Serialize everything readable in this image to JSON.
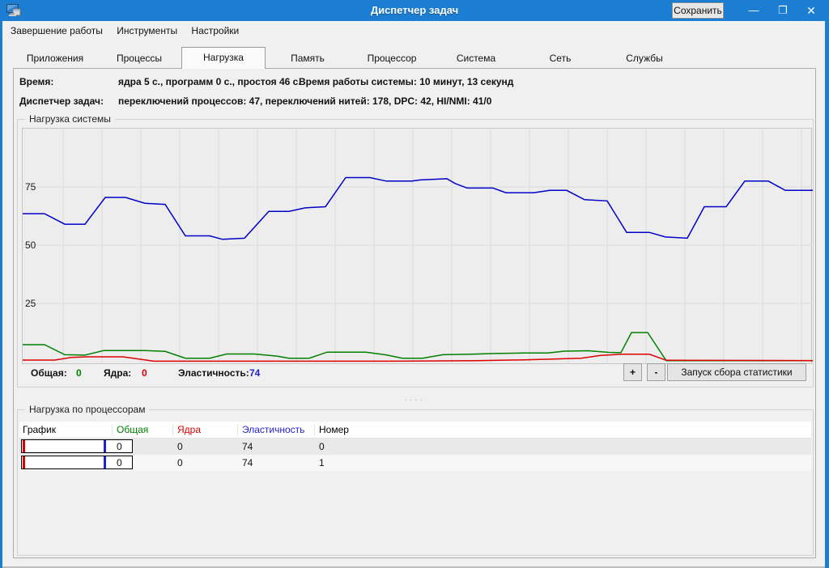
{
  "colors": {
    "titlebar": "#1b7ed3",
    "total_green": "#008000",
    "kernel_red": "#dd0000",
    "elastic_blue": "#2222cc"
  },
  "window": {
    "title": "Диспетчер задач",
    "save_button": "Сохранить",
    "minimize_icon": "—",
    "maximize_icon": "❐",
    "close_icon": "✕"
  },
  "menu": {
    "items": [
      "Завершение работы",
      "Инструменты",
      "Настройки"
    ]
  },
  "tabs": [
    {
      "label": "Приложения",
      "active": false
    },
    {
      "label": "Процессы",
      "active": false
    },
    {
      "label": "Нагрузка",
      "active": true
    },
    {
      "label": "Память",
      "active": false
    },
    {
      "label": "Процессор",
      "active": false
    },
    {
      "label": "Система",
      "active": false
    },
    {
      "label": "Сеть",
      "active": false
    },
    {
      "label": "Службы",
      "active": false
    }
  ],
  "info": {
    "time_label": "Время:",
    "time_value": "ядра 5 с., программ 0 с., простоя 46 с.",
    "uptime": "Время работы системы: 10 минут, 13 секунд",
    "taskmgr_label": "Диспетчер задач:",
    "taskmgr_value": "переключений процессов: 47, переключений нитей: 178, DPC: 42, HI/NMI: 41/0"
  },
  "load_panel": {
    "title": "Нагрузка системы",
    "legend": {
      "total_label": "Общая:",
      "total_value": "0",
      "kernel_label": "Ядра:",
      "kernel_value": "0",
      "elastic_label": "Эластичность:",
      "elastic_value": "74"
    },
    "plus_button": "+",
    "minus_button": "-",
    "stats_button": "Запуск сбора статистики"
  },
  "splitter": "····",
  "cpu_panel": {
    "title": "Нагрузка по процессорам",
    "columns": [
      {
        "label": "График",
        "color": "#000000"
      },
      {
        "label": "Общая",
        "color": "#008000"
      },
      {
        "label": "Ядра",
        "color": "#dd0000"
      },
      {
        "label": "Эластичность",
        "color": "#2222cc"
      },
      {
        "label": "Номер",
        "color": "#000000"
      }
    ],
    "rows": [
      {
        "total": "0",
        "kernel": "0",
        "elasticity": "74",
        "number": "0"
      },
      {
        "total": "0",
        "kernel": "0",
        "elasticity": "74",
        "number": "1"
      }
    ]
  },
  "chart_data": {
    "type": "line",
    "title": "Нагрузка системы",
    "ylim": [
      0,
      100
    ],
    "yticks": [
      25,
      50,
      75
    ],
    "grid": true,
    "legend_position": "bottom",
    "x_unit": "time-sweep",
    "series": [
      {
        "name": "Общая",
        "color": "#008000",
        "points": [
          [
            0,
            7.3
          ],
          [
            27,
            7.3
          ],
          [
            52,
            3
          ],
          [
            77,
            2.8
          ],
          [
            100,
            4.8
          ],
          [
            127,
            4.8
          ],
          [
            151,
            4.8
          ],
          [
            176,
            4.4
          ],
          [
            201,
            1.5
          ],
          [
            231,
            1.5
          ],
          [
            252,
            3.3
          ],
          [
            286,
            3.3
          ],
          [
            314,
            2.4
          ],
          [
            329,
            1.5
          ],
          [
            354,
            1.5
          ],
          [
            376,
            4.1
          ],
          [
            424,
            4.1
          ],
          [
            449,
            2.9
          ],
          [
            469,
            1.5
          ],
          [
            494,
            1.5
          ],
          [
            519,
            3
          ],
          [
            554,
            3.2
          ],
          [
            584,
            3.5
          ],
          [
            619,
            3.7
          ],
          [
            649,
            3.7
          ],
          [
            669,
            4.5
          ],
          [
            699,
            4.7
          ],
          [
            724,
            4
          ],
          [
            739,
            3.9
          ],
          [
            752,
            12.5
          ],
          [
            772,
            12.5
          ],
          [
            795,
            0.4
          ],
          [
            976,
            0.4
          ]
        ]
      },
      {
        "name": "Ядра",
        "color": "#dd0000",
        "points": [
          [
            0,
            0.7
          ],
          [
            40,
            0.7
          ],
          [
            60,
            1.8
          ],
          [
            79,
            2.1
          ],
          [
            124,
            2.1
          ],
          [
            140,
            1.3
          ],
          [
            162,
            0.2
          ],
          [
            460,
            0.2
          ],
          [
            560,
            0.4
          ],
          [
            620,
            0.8
          ],
          [
            664,
            1.2
          ],
          [
            690,
            1.5
          ],
          [
            714,
            2.7
          ],
          [
            740,
            3.2
          ],
          [
            774,
            3.2
          ],
          [
            795,
            0.6
          ],
          [
            976,
            0.5
          ]
        ]
      },
      {
        "name": "Эластичность",
        "color": "#0000c8",
        "points": [
          [
            0,
            63.5
          ],
          [
            27,
            63.5
          ],
          [
            52,
            59
          ],
          [
            77,
            59
          ],
          [
            102,
            70.5
          ],
          [
            127,
            70.5
          ],
          [
            151,
            68
          ],
          [
            176,
            67.5
          ],
          [
            201,
            54
          ],
          [
            231,
            54
          ],
          [
            247,
            52.5
          ],
          [
            274,
            53
          ],
          [
            304,
            64.5
          ],
          [
            329,
            64.5
          ],
          [
            349,
            66
          ],
          [
            374,
            66.5
          ],
          [
            399,
            79
          ],
          [
            429,
            79
          ],
          [
            449,
            77.5
          ],
          [
            481,
            77.5
          ],
          [
            491,
            78
          ],
          [
            524,
            78.5
          ],
          [
            534,
            76.5
          ],
          [
            549,
            74.5
          ],
          [
            581,
            74.5
          ],
          [
            597,
            72.5
          ],
          [
            631,
            72.5
          ],
          [
            651,
            73.5
          ],
          [
            672,
            73.5
          ],
          [
            694,
            69.5
          ],
          [
            722,
            69
          ],
          [
            746,
            55.5
          ],
          [
            774,
            55.5
          ],
          [
            794,
            53.5
          ],
          [
            821,
            53
          ],
          [
            842,
            66.5
          ],
          [
            869,
            66.5
          ],
          [
            892,
            77.5
          ],
          [
            921,
            77.5
          ],
          [
            942,
            73.5
          ],
          [
            976,
            73.5
          ]
        ]
      }
    ]
  }
}
